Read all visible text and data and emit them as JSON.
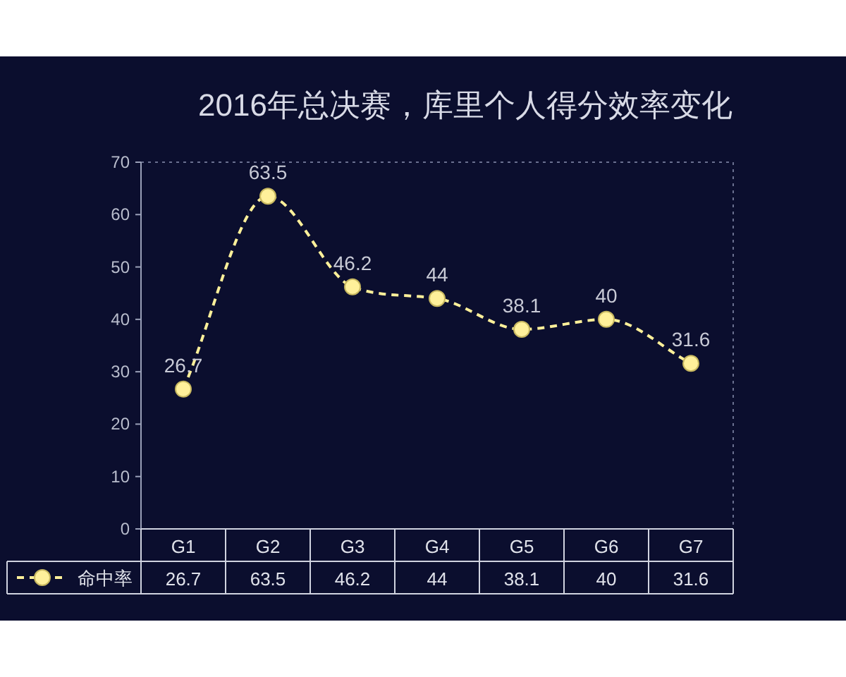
{
  "chart_data": {
    "type": "line",
    "title": "2016年总决赛，库里个人得分效率变化",
    "categories": [
      "G1",
      "G2",
      "G3",
      "G4",
      "G5",
      "G6",
      "G7"
    ],
    "series": [
      {
        "name": "命中率",
        "color": "#fff09a",
        "values": [
          26.7,
          63.5,
          46.2,
          44,
          38.1,
          40,
          31.6
        ],
        "value_labels": [
          "26.7",
          "63.5",
          "46.2",
          "44",
          "38.1",
          "40",
          "31.6"
        ]
      }
    ],
    "ylim": [
      0,
      70
    ],
    "yticks": [
      0,
      10,
      20,
      30,
      40,
      50,
      60,
      70
    ],
    "annotations": [
      "26.7",
      "63.5",
      "46.2",
      "44",
      "38.1",
      "40",
      "31.6"
    ],
    "marker": "circle",
    "line_style": "dashed",
    "legend": "bottom left"
  }
}
